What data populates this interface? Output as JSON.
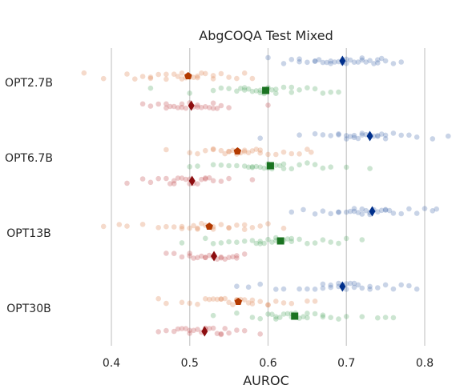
{
  "chart_data": {
    "type": "scatter",
    "title": "AbgCOQA Test Mixed",
    "xlabel": "AUROC",
    "ylabel": "",
    "xlim": [
      0.35,
      0.85
    ],
    "xticks": [
      "0.4",
      "0.5",
      "0.6",
      "0.7",
      "0.8"
    ],
    "grid": "vertical",
    "categories": [
      "OPT2.7B",
      "OPT6.7B",
      "OPT13B",
      "OPT30B"
    ],
    "series": [
      {
        "color": "#4c72b0",
        "mean_color": "#00308c",
        "marker": "diamond",
        "means": [
          0.695,
          0.73,
          0.733,
          0.695
        ],
        "values": [
          [
            0.6,
            0.62,
            0.63,
            0.64,
            0.65,
            0.66,
            0.665,
            0.67,
            0.675,
            0.68,
            0.685,
            0.69,
            0.695,
            0.7,
            0.705,
            0.71,
            0.715,
            0.72,
            0.725,
            0.73,
            0.735,
            0.74,
            0.745,
            0.75,
            0.76,
            0.77,
            0.64,
            0.66,
            0.68,
            0.7,
            0.72,
            0.74
          ],
          [
            0.59,
            0.64,
            0.66,
            0.67,
            0.68,
            0.69,
            0.7,
            0.705,
            0.71,
            0.715,
            0.72,
            0.725,
            0.73,
            0.735,
            0.74,
            0.745,
            0.75,
            0.76,
            0.77,
            0.78,
            0.79,
            0.81,
            0.83,
            0.69,
            0.71,
            0.73,
            0.75,
            0.7,
            0.72,
            0.74
          ],
          [
            0.63,
            0.645,
            0.66,
            0.67,
            0.68,
            0.69,
            0.7,
            0.705,
            0.71,
            0.715,
            0.72,
            0.725,
            0.73,
            0.735,
            0.74,
            0.745,
            0.75,
            0.755,
            0.76,
            0.77,
            0.78,
            0.79,
            0.8,
            0.81,
            0.815,
            0.71,
            0.73,
            0.75,
            0.69,
            0.72
          ],
          [
            0.56,
            0.575,
            0.59,
            0.61,
            0.62,
            0.64,
            0.65,
            0.66,
            0.67,
            0.68,
            0.69,
            0.695,
            0.7,
            0.705,
            0.71,
            0.715,
            0.72,
            0.73,
            0.74,
            0.75,
            0.76,
            0.77,
            0.78,
            0.79,
            0.67,
            0.69,
            0.71,
            0.73,
            0.68,
            0.7
          ]
        ]
      },
      {
        "color": "#dd8452",
        "mean_color": "#b33a00",
        "marker": "pentagon",
        "means": [
          0.498,
          0.561,
          0.525,
          0.562
        ],
        "values": [
          [
            0.365,
            0.39,
            0.42,
            0.43,
            0.44,
            0.45,
            0.46,
            0.47,
            0.48,
            0.485,
            0.49,
            0.495,
            0.5,
            0.505,
            0.51,
            0.515,
            0.52,
            0.53,
            0.54,
            0.55,
            0.56,
            0.57,
            0.58,
            0.45,
            0.47,
            0.49,
            0.51,
            0.53
          ],
          [
            0.47,
            0.5,
            0.51,
            0.52,
            0.53,
            0.54,
            0.545,
            0.55,
            0.555,
            0.56,
            0.565,
            0.57,
            0.575,
            0.58,
            0.585,
            0.59,
            0.6,
            0.61,
            0.62,
            0.63,
            0.64,
            0.65,
            0.655,
            0.53,
            0.55,
            0.57,
            0.59,
            0.56
          ],
          [
            0.39,
            0.41,
            0.42,
            0.44,
            0.46,
            0.47,
            0.48,
            0.49,
            0.5,
            0.505,
            0.51,
            0.515,
            0.52,
            0.53,
            0.54,
            0.55,
            0.56,
            0.57,
            0.58,
            0.59,
            0.6,
            0.62,
            0.49,
            0.51,
            0.53,
            0.55,
            0.57
          ],
          [
            0.46,
            0.47,
            0.49,
            0.5,
            0.51,
            0.52,
            0.525,
            0.53,
            0.535,
            0.54,
            0.545,
            0.55,
            0.555,
            0.56,
            0.565,
            0.57,
            0.575,
            0.58,
            0.59,
            0.6,
            0.61,
            0.62,
            0.63,
            0.65,
            0.66,
            0.54,
            0.56,
            0.58,
            0.6
          ]
        ]
      },
      {
        "color": "#55a868",
        "mean_color": "#1a7321",
        "marker": "square",
        "means": [
          0.597,
          0.603,
          0.616,
          0.634
        ],
        "values": [
          [
            0.45,
            0.5,
            0.53,
            0.54,
            0.55,
            0.56,
            0.565,
            0.57,
            0.575,
            0.58,
            0.585,
            0.59,
            0.595,
            0.6,
            0.605,
            0.61,
            0.62,
            0.63,
            0.64,
            0.65,
            0.66,
            0.67,
            0.68,
            0.69,
            0.57,
            0.59,
            0.61,
            0.63
          ],
          [
            0.5,
            0.51,
            0.53,
            0.54,
            0.55,
            0.56,
            0.57,
            0.575,
            0.58,
            0.585,
            0.59,
            0.595,
            0.6,
            0.605,
            0.61,
            0.615,
            0.62,
            0.63,
            0.64,
            0.65,
            0.66,
            0.67,
            0.68,
            0.7,
            0.73,
            0.58,
            0.6,
            0.62
          ],
          [
            0.49,
            0.52,
            0.53,
            0.54,
            0.55,
            0.56,
            0.57,
            0.58,
            0.585,
            0.59,
            0.595,
            0.6,
            0.605,
            0.61,
            0.62,
            0.625,
            0.63,
            0.64,
            0.65,
            0.66,
            0.67,
            0.68,
            0.69,
            0.7,
            0.72,
            0.59,
            0.61,
            0.63
          ],
          [
            0.53,
            0.56,
            0.58,
            0.59,
            0.6,
            0.605,
            0.61,
            0.615,
            0.62,
            0.625,
            0.63,
            0.635,
            0.64,
            0.645,
            0.65,
            0.66,
            0.67,
            0.68,
            0.69,
            0.7,
            0.72,
            0.74,
            0.75,
            0.76,
            0.61,
            0.63,
            0.65,
            0.67
          ]
        ]
      },
      {
        "color": "#c44e52",
        "mean_color": "#8c0e10",
        "marker": "diamond",
        "means": [
          0.502,
          0.503,
          0.531,
          0.519
        ],
        "values": [
          [
            0.44,
            0.45,
            0.46,
            0.47,
            0.475,
            0.48,
            0.485,
            0.49,
            0.495,
            0.5,
            0.505,
            0.51,
            0.515,
            0.52,
            0.525,
            0.53,
            0.535,
            0.54,
            0.55,
            0.6,
            0.47,
            0.49,
            0.51,
            0.53
          ],
          [
            0.42,
            0.44,
            0.45,
            0.46,
            0.47,
            0.475,
            0.48,
            0.485,
            0.49,
            0.495,
            0.5,
            0.505,
            0.51,
            0.515,
            0.52,
            0.525,
            0.53,
            0.54,
            0.55,
            0.58,
            0.48,
            0.5,
            0.52
          ],
          [
            0.47,
            0.48,
            0.49,
            0.5,
            0.505,
            0.51,
            0.515,
            0.52,
            0.525,
            0.53,
            0.535,
            0.54,
            0.545,
            0.55,
            0.555,
            0.56,
            0.57,
            0.5,
            0.52,
            0.54,
            0.56
          ],
          [
            0.46,
            0.47,
            0.48,
            0.485,
            0.49,
            0.495,
            0.5,
            0.505,
            0.51,
            0.515,
            0.52,
            0.525,
            0.53,
            0.535,
            0.54,
            0.545,
            0.55,
            0.56,
            0.57,
            0.59,
            0.5,
            0.52,
            0.54
          ]
        ]
      }
    ]
  }
}
